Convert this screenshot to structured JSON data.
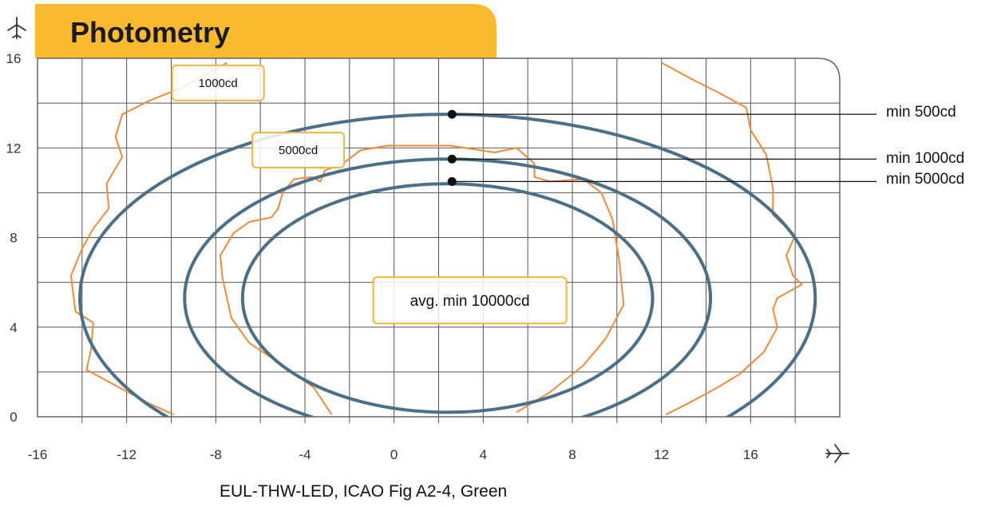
{
  "title": "Photometry",
  "caption": "EUL-THW-LED, ICAO Fig A2-4, Green",
  "icons": {
    "y_axis": "airplane-up-icon",
    "x_axis": "airplane-right-icon"
  },
  "colors": {
    "title_bg": "#fbba30",
    "ellipse": "#4a6f87",
    "measured": "#f08a3c",
    "label_box": "#f5b63c",
    "grid": "#555555"
  },
  "chart_data": {
    "type": "line",
    "title": "Photometry",
    "xlim": [
      -16,
      20
    ],
    "ylim": [
      0,
      16
    ],
    "x_ticks": [
      "-16",
      "-12",
      "-8",
      "-4",
      "0",
      "4",
      "8",
      "12",
      "16"
    ],
    "y_ticks": [
      "0",
      "4",
      "8",
      "12",
      "16"
    ],
    "grid": true,
    "ellipses": [
      {
        "name": "min 500cd",
        "center": [
          2.4,
          5.3
        ],
        "rx": 16.5,
        "ry": 8.2
      },
      {
        "name": "min 1000cd",
        "center": [
          2.4,
          5.3
        ],
        "rx": 11.8,
        "ry": 6.2
      },
      {
        "name": "min 5000cd",
        "center": [
          2.4,
          5.3
        ],
        "rx": 9.2,
        "ry": 5.1
      }
    ],
    "callouts": [
      {
        "label": "min 500cd",
        "x": 2.6,
        "y": 13.5
      },
      {
        "label": "min 1000cd",
        "x": 2.6,
        "y": 11.5
      },
      {
        "label": "min 5000cd",
        "x": 2.6,
        "y": 10.5
      }
    ],
    "box_labels": [
      {
        "label": "1000cd",
        "x": -7.9,
        "y": 14.9
      },
      {
        "label": "5000cd",
        "x": -4.3,
        "y": 11.9
      },
      {
        "label": "avg. min 10000cd",
        "x": 3.4,
        "y": 5.2
      }
    ],
    "measured_curves": [
      {
        "points": [
          [
            -7.5,
            15.8
          ],
          [
            -9.5,
            14.7
          ],
          [
            -11,
            14.1
          ],
          [
            -12.2,
            13.5
          ],
          [
            -12.5,
            12.5
          ],
          [
            -12.2,
            11.6
          ],
          [
            -12.9,
            10.4
          ],
          [
            -12.8,
            9.3
          ],
          [
            -13.5,
            8.4
          ],
          [
            -14,
            7.5
          ],
          [
            -14.5,
            6.3
          ],
          [
            -14.3,
            4.7
          ],
          [
            -13.5,
            4.2
          ],
          [
            -13.6,
            3
          ],
          [
            -13.8,
            2.1
          ],
          [
            -12.5,
            1.4
          ],
          [
            -11,
            0.6
          ],
          [
            -9.9,
            0.1
          ]
        ]
      },
      {
        "points": [
          [
            12,
            15.8
          ],
          [
            13.5,
            15
          ],
          [
            14.5,
            14.5
          ],
          [
            15.8,
            13.8
          ],
          [
            16,
            12.8
          ],
          [
            16.7,
            11.7
          ],
          [
            17,
            10.2
          ],
          [
            17,
            9
          ],
          [
            18,
            8.1
          ],
          [
            17.6,
            7.2
          ],
          [
            17.9,
            6.3
          ],
          [
            18.3,
            5.9
          ],
          [
            17.2,
            5.3
          ],
          [
            17,
            4.8
          ],
          [
            17.2,
            4
          ],
          [
            16.6,
            2.9
          ],
          [
            15.5,
            1.9
          ],
          [
            14.5,
            1.3
          ],
          [
            13.2,
            0.6
          ],
          [
            12.2,
            0.1
          ]
        ]
      },
      {
        "points": [
          [
            -2.8,
            0.1
          ],
          [
            -3.6,
            1.3
          ],
          [
            -5,
            2.3
          ],
          [
            -6.5,
            3.3
          ],
          [
            -7.3,
            4.4
          ],
          [
            -7.7,
            6.2
          ],
          [
            -7.8,
            7.2
          ],
          [
            -7.2,
            8.2
          ],
          [
            -6.5,
            8.7
          ],
          [
            -5.5,
            8.9
          ],
          [
            -5.2,
            9.3
          ],
          [
            -5,
            10
          ],
          [
            -4.5,
            10.6
          ],
          [
            -3.7,
            10.7
          ],
          [
            -3.3,
            10.5
          ],
          [
            -3.1,
            11
          ],
          [
            -2.3,
            11.3
          ],
          [
            -1.5,
            11.9
          ],
          [
            -0.3,
            12.1
          ],
          [
            2.5,
            12.1
          ],
          [
            4.5,
            11.8
          ],
          [
            5.5,
            12
          ],
          [
            6.3,
            11.3
          ],
          [
            6.3,
            10.7
          ],
          [
            7,
            10.5
          ],
          [
            8.5,
            10.6
          ],
          [
            9.3,
            10
          ],
          [
            9.8,
            8.8
          ],
          [
            10.1,
            7
          ],
          [
            10.3,
            5
          ],
          [
            9.5,
            3.5
          ],
          [
            8.5,
            2.3
          ],
          [
            7,
            1.1
          ],
          [
            5.5,
            0.2
          ]
        ]
      }
    ]
  }
}
